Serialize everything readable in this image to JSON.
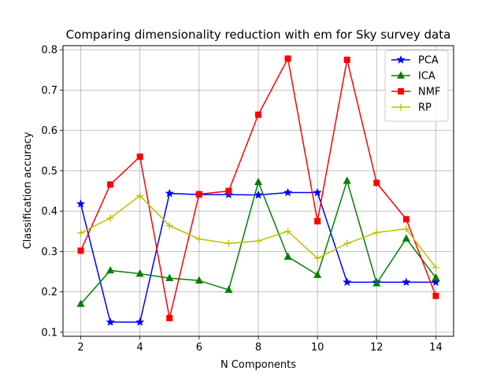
{
  "chart_data": {
    "type": "line",
    "title": "Comparing dimensionality reduction with em for Sky survey data",
    "xlabel": "N Components",
    "ylabel": "Classification accuracy",
    "x": [
      2,
      3,
      4,
      5,
      6,
      7,
      8,
      9,
      10,
      11,
      12,
      13,
      14
    ],
    "xlim": [
      1.4,
      14.6
    ],
    "ylim": [
      0.09,
      0.81
    ],
    "xticks": [
      2,
      4,
      6,
      8,
      10,
      12,
      14
    ],
    "yticks": [
      0.1,
      0.2,
      0.3,
      0.4,
      0.5,
      0.6,
      0.7,
      0.8
    ],
    "grid": true,
    "legend_position": "top-right",
    "series": [
      {
        "name": "PCA",
        "color": "#0000ff",
        "marker": "star",
        "values": [
          0.418,
          0.125,
          0.125,
          0.444,
          0.441,
          0.441,
          0.44,
          0.446,
          0.446,
          0.224,
          0.224,
          0.224,
          0.224
        ]
      },
      {
        "name": "ICA",
        "color": "#008000",
        "marker": "triangle",
        "values": [
          0.17,
          0.253,
          0.245,
          0.234,
          0.228,
          0.205,
          0.472,
          0.287,
          0.242,
          0.475,
          0.221,
          0.332,
          0.235
        ]
      },
      {
        "name": "NMF",
        "color": "#ff0000",
        "marker": "square",
        "values": [
          0.302,
          0.466,
          0.535,
          0.135,
          0.442,
          0.45,
          0.639,
          0.778,
          0.375,
          0.775,
          0.47,
          0.38,
          0.19
        ]
      },
      {
        "name": "RP",
        "color": "#bfbf00",
        "marker": "plus",
        "values": [
          0.346,
          0.383,
          0.438,
          0.364,
          0.331,
          0.32,
          0.326,
          0.35,
          0.283,
          0.32,
          0.347,
          0.356,
          0.26
        ]
      }
    ]
  }
}
